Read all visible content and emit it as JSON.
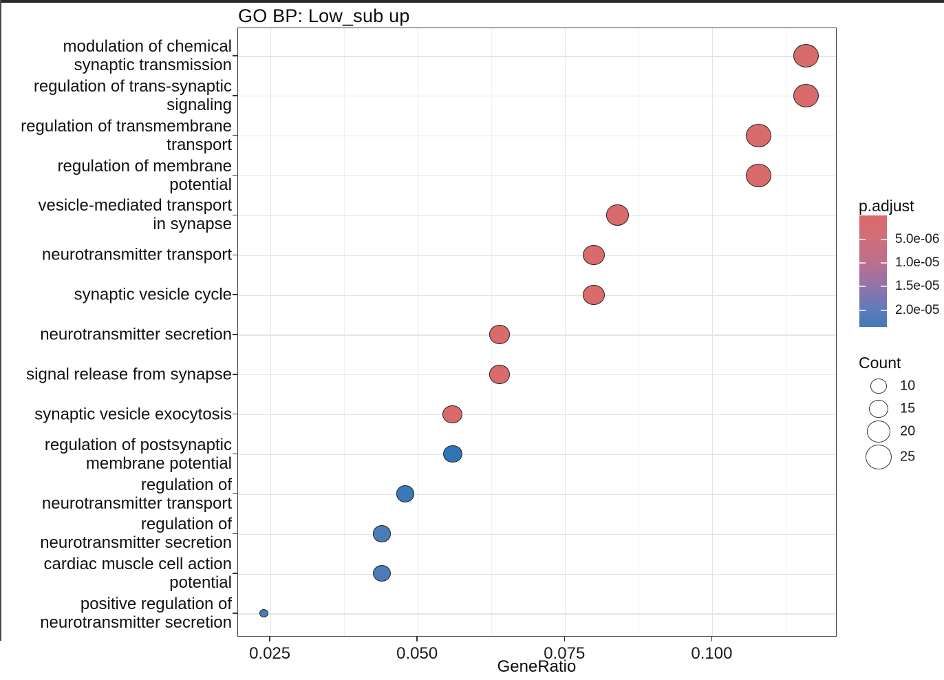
{
  "window": {
    "top_bar_color": "#2b2b2e",
    "left_edge_color": "#4a4a4a"
  },
  "chart_data": {
    "type": "scatter",
    "title": "GO BP: Low_sub up",
    "xlabel": "GeneRatio",
    "x_ticks": [
      0.025,
      0.05,
      0.075,
      0.1
    ],
    "x_tick_labels": [
      "0.025",
      "0.050",
      "0.075",
      "0.100"
    ],
    "x_minor_ticks": [
      0.0375,
      0.0625,
      0.0875,
      0.1125
    ],
    "xlim": [
      0.0195,
      0.1212
    ],
    "grid": "on",
    "categories": [
      "modulation of chemical synaptic transmission",
      "regulation of trans-synaptic signaling",
      "regulation of transmembrane transport",
      "regulation of membrane potential",
      "vesicle-mediated transport in synapse",
      "neurotransmitter transport",
      "synaptic vesicle cycle",
      "neurotransmitter secretion",
      "signal release from synapse",
      "synaptic vesicle exocytosis",
      "regulation of postsynaptic membrane potential",
      "regulation of neurotransmitter transport",
      "regulation of neurotransmitter secretion",
      "cardiac muscle cell action potential",
      "positive regulation of neurotransmitter secretion"
    ],
    "category_label_lines": [
      [
        "modulation of chemical",
        "synaptic transmission"
      ],
      [
        "regulation of trans-synaptic",
        "signaling"
      ],
      [
        "regulation of transmembrane",
        "transport"
      ],
      [
        "regulation of membrane",
        "potential"
      ],
      [
        "vesicle-mediated transport",
        "in synapse"
      ],
      [
        "neurotransmitter transport"
      ],
      [
        "synaptic vesicle cycle"
      ],
      [
        "neurotransmitter secretion"
      ],
      [
        "signal release from synapse"
      ],
      [
        "synaptic vesicle exocytosis"
      ],
      [
        "regulation of postsynaptic",
        "membrane potential"
      ],
      [
        "regulation of",
        "neurotransmitter transport"
      ],
      [
        "regulation of",
        "neurotransmitter secretion"
      ],
      [
        "cardiac muscle cell action",
        "potential"
      ],
      [
        "positive regulation of",
        "neurotransmitter secretion"
      ]
    ],
    "points": [
      {
        "term": "modulation of chemical synaptic transmission",
        "gene_ratio": 0.116,
        "count_approx": 24,
        "radius_px": 18.5,
        "color": "#d96b6b"
      },
      {
        "term": "regulation of trans-synaptic signaling",
        "gene_ratio": 0.116,
        "count_approx": 24,
        "radius_px": 18.5,
        "color": "#d96b6b"
      },
      {
        "term": "regulation of transmembrane transport",
        "gene_ratio": 0.108,
        "count_approx": 24,
        "radius_px": 18.5,
        "color": "#d96b6b"
      },
      {
        "term": "regulation of membrane potential",
        "gene_ratio": 0.108,
        "count_approx": 24,
        "radius_px": 18.5,
        "color": "#d96b6b"
      },
      {
        "term": "vesicle-mediated transport in synapse",
        "gene_ratio": 0.084,
        "count_approx": 20,
        "radius_px": 16.8,
        "color": "#d96b6b"
      },
      {
        "term": "neurotransmitter transport",
        "gene_ratio": 0.08,
        "count_approx": 18,
        "radius_px": 16.0,
        "color": "#d96b6b"
      },
      {
        "term": "synaptic vesicle cycle",
        "gene_ratio": 0.08,
        "count_approx": 17,
        "radius_px": 15.7,
        "color": "#d96b6b"
      },
      {
        "term": "neurotransmitter secretion",
        "gene_ratio": 0.064,
        "count_approx": 16,
        "radius_px": 15.0,
        "color": "#d96b6b"
      },
      {
        "term": "signal release from synapse",
        "gene_ratio": 0.064,
        "count_approx": 16,
        "radius_px": 15.0,
        "color": "#d96b6b"
      },
      {
        "term": "synaptic vesicle exocytosis",
        "gene_ratio": 0.056,
        "count_approx": 15,
        "radius_px": 14.3,
        "color": "#d9696b"
      },
      {
        "term": "regulation of postsynaptic membrane potential",
        "gene_ratio": 0.056,
        "count_approx": 14,
        "radius_px": 14.0,
        "color": "#2e75b5"
      },
      {
        "term": "regulation of neurotransmitter transport",
        "gene_ratio": 0.048,
        "count_approx": 13,
        "radius_px": 13.2,
        "color": "#3b78b7"
      },
      {
        "term": "regulation of neurotransmitter secretion",
        "gene_ratio": 0.044,
        "count_approx": 13,
        "radius_px": 13.3,
        "color": "#4a7cb9"
      },
      {
        "term": "cardiac muscle cell action potential",
        "gene_ratio": 0.044,
        "count_approx": 13,
        "radius_px": 13.3,
        "color": "#4a7cb9"
      },
      {
        "term": "positive regulation of neurotransmitter secretion",
        "gene_ratio": 0.024,
        "count_approx": 4,
        "radius_px": 6.8,
        "color": "#4a7ab6"
      }
    ],
    "legend_padjust": {
      "title": "p.adjust",
      "tick_labels": [
        "5.0e-06",
        "1.0e-05",
        "1.5e-05",
        "2.0e-05"
      ],
      "gradient_stops": [
        {
          "color": "#db6a6a",
          "pos": 0
        },
        {
          "color": "#d26e79",
          "pos": 20
        },
        {
          "color": "#b86f90",
          "pos": 45
        },
        {
          "color": "#8f73ab",
          "pos": 65
        },
        {
          "color": "#5c7cbd",
          "pos": 85
        },
        {
          "color": "#4379b9",
          "pos": 100
        }
      ]
    },
    "legend_count": {
      "title": "Count",
      "items": [
        {
          "label": "10",
          "radius_px": 11.7
        },
        {
          "label": "15",
          "radius_px": 14.0
        },
        {
          "label": "20",
          "radius_px": 16.7
        },
        {
          "label": "25",
          "radius_px": 19.0
        }
      ]
    }
  }
}
